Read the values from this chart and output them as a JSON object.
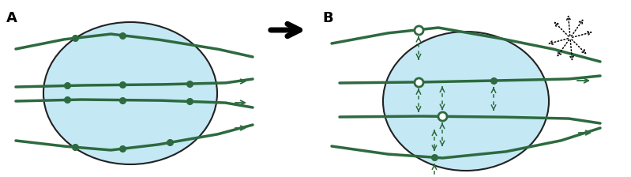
{
  "bg_color": "#ffffff",
  "nucleus_color": "#c5e8f5",
  "nucleus_edge_color": "#222222",
  "mt_color": "#2d6a3f",
  "arrow_color": "#1a1a1a",
  "label_A": "A",
  "label_B": "B",
  "fig_w": 7.99,
  "fig_h": 2.24,
  "dpi": 100
}
